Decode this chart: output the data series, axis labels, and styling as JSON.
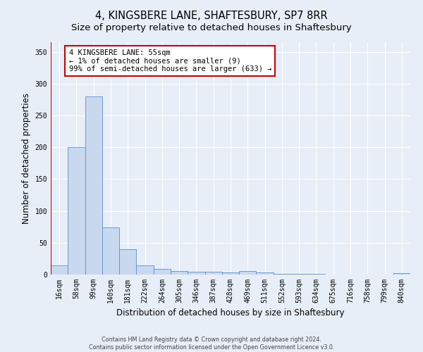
{
  "title": "4, KINGSBERE LANE, SHAFTESBURY, SP7 8RR",
  "subtitle": "Size of property relative to detached houses in Shaftesbury",
  "xlabel": "Distribution of detached houses by size in Shaftesbury",
  "ylabel": "Number of detached properties",
  "bar_labels": [
    "16sqm",
    "58sqm",
    "99sqm",
    "140sqm",
    "181sqm",
    "222sqm",
    "264sqm",
    "305sqm",
    "346sqm",
    "387sqm",
    "428sqm",
    "469sqm",
    "511sqm",
    "552sqm",
    "593sqm",
    "634sqm",
    "675sqm",
    "716sqm",
    "758sqm",
    "799sqm",
    "840sqm"
  ],
  "bar_values": [
    14,
    200,
    280,
    74,
    40,
    14,
    9,
    6,
    4,
    4,
    3,
    5,
    3,
    1,
    1,
    1,
    0,
    0,
    0,
    0,
    2
  ],
  "bar_color": "#c8d9ef",
  "bar_edge_color": "#5b8fc7",
  "property_line_color": "#cc0000",
  "annotation_text": "4 KINGSBERE LANE: 55sqm\n← 1% of detached houses are smaller (9)\n99% of semi-detached houses are larger (633) →",
  "annotation_box_color": "#ffffff",
  "annotation_box_edge_color": "#cc0000",
  "ylim": [
    0,
    365
  ],
  "yticks": [
    0,
    50,
    100,
    150,
    200,
    250,
    300,
    350
  ],
  "bg_color": "#e8eef8",
  "plot_bg_color": "#e8eef8",
  "footer_line1": "Contains HM Land Registry data © Crown copyright and database right 2024.",
  "footer_line2": "Contains public sector information licensed under the Open Government Licence v3.0.",
  "grid_color": "#ffffff",
  "title_fontsize": 10.5,
  "subtitle_fontsize": 9.5,
  "tick_fontsize": 7,
  "ylabel_fontsize": 8.5,
  "xlabel_fontsize": 8.5,
  "annotation_fontsize": 7.5,
  "footer_fontsize": 5.8
}
